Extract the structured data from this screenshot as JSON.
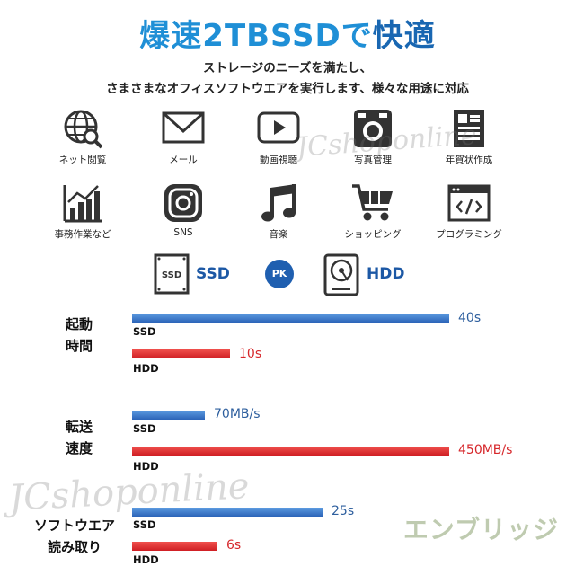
{
  "header": {
    "title_part1": "爆速2TBSSDで",
    "title_part2": "快適",
    "subtitle_line1": "ストレージのニーズを満たし、",
    "subtitle_line2": "さまさまなオフィスソフトウエアを実行します、様々な用途に対応"
  },
  "icons": [
    {
      "name": "globe-search-icon",
      "label": "ネット閲覧"
    },
    {
      "name": "mail-icon",
      "label": "メール"
    },
    {
      "name": "play-video-icon",
      "label": "動画視聴"
    },
    {
      "name": "camera-icon",
      "label": "写真管理"
    },
    {
      "name": "document-icon",
      "label": "年賀状作成"
    },
    {
      "name": "bar-chart-icon",
      "label": "事務作業など"
    },
    {
      "name": "instagram-icon",
      "label": "SNS"
    },
    {
      "name": "music-note-icon",
      "label": "音楽"
    },
    {
      "name": "shopping-cart-icon",
      "label": "ショッピング"
    },
    {
      "name": "code-window-icon",
      "label": "プログラミング"
    }
  ],
  "comparison": {
    "ssd_icon_text": "SSD",
    "ssd_label": "SSD",
    "pk_label": "PK",
    "hdd_label": "HDD"
  },
  "metrics": [
    {
      "label_line1": "起動",
      "label_line2": "時間",
      "ssd": {
        "tag": "SSD",
        "value_text": "40s",
        "fraction": 1.0
      },
      "hdd": {
        "tag": "HDD",
        "value_text": "10s",
        "fraction": 0.31
      }
    },
    {
      "label_line1": "転送",
      "label_line2": "速度",
      "ssd": {
        "tag": "SSD",
        "value_text": "70MB/s",
        "fraction": 0.23
      },
      "hdd": {
        "tag": "HDD",
        "value_text": "450MB/s",
        "fraction": 1.0
      }
    },
    {
      "label_line1": "ソフトウエア",
      "label_line2": "読み取り",
      "ssd": {
        "tag": "SSD",
        "value_text": "25s",
        "fraction": 0.6
      },
      "hdd": {
        "tag": "HDD",
        "value_text": "6s",
        "fraction": 0.27
      }
    }
  ],
  "watermarks": {
    "script_text": "JCshoponline",
    "logo_text": "エンブリッジ"
  },
  "colors": {
    "title_blue": "#1f8fd6",
    "ssd_bar": "#2c64b8",
    "hdd_bar": "#cf1f24",
    "pk_circle": "#1f5fb0"
  }
}
